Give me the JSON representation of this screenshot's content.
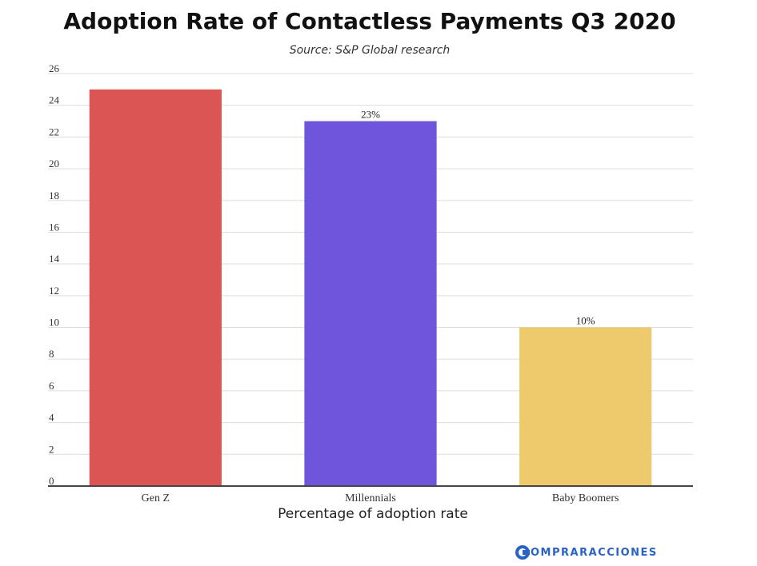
{
  "chart_data": {
    "type": "bar",
    "title": "Adoption Rate of Contactless Payments Q3 2020",
    "subtitle": "Source: S&P Global research",
    "xlabel": "Percentage of adoption rate",
    "ylabel": "",
    "categories": [
      "Gen Z",
      "Millennials",
      "Baby Boomers"
    ],
    "values": [
      25,
      23,
      10
    ],
    "data_labels": [
      "",
      "23%",
      "10%"
    ],
    "colors": [
      "#dc5555",
      "#6e55dc",
      "#efca6c"
    ],
    "ylim": [
      0,
      26
    ],
    "yticks": [
      0,
      2,
      4,
      6,
      8,
      10,
      12,
      14,
      16,
      18,
      20,
      22,
      24,
      26
    ],
    "grid": true,
    "legend": "none"
  },
  "brand": {
    "logo_text": "OMPRARACCIONES",
    "color": "#2a63c6"
  }
}
